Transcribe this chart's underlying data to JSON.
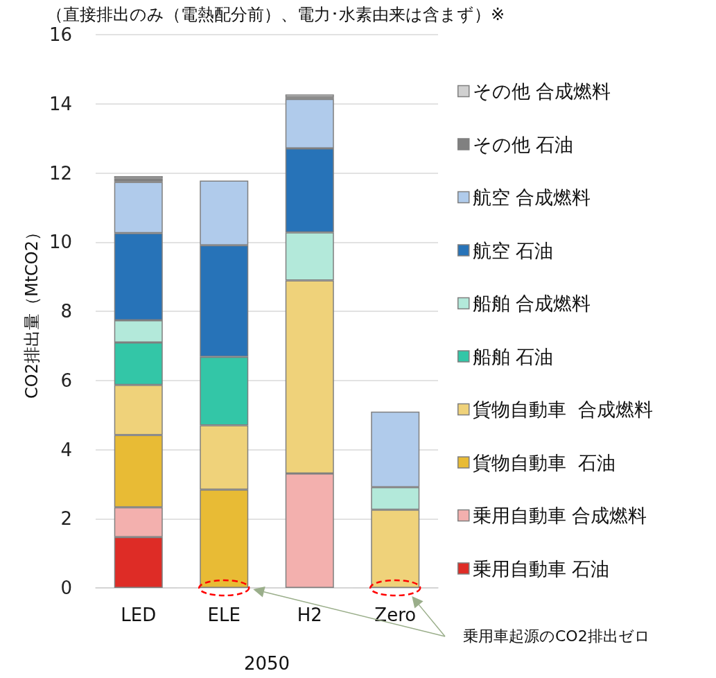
{
  "chart_data": {
    "type": "bar",
    "stacked": true,
    "title": "（直接排出のみ（電熱配分前）、電力･水素由来は含まず）※",
    "ylabel": "CO2排出量（MtCO2）",
    "xlabel": "2050",
    "categories": [
      "LED",
      "ELE",
      "H2",
      "Zero"
    ],
    "series": [
      {
        "name": "乗用自動車 石油",
        "color": "#de2c26",
        "values": [
          1.47,
          0,
          0,
          0
        ]
      },
      {
        "name": "乗用自動車 合成燃料",
        "color": "#f3b0ae",
        "values": [
          0.86,
          0,
          3.31,
          0
        ]
      },
      {
        "name": "貨物自動車  石油",
        "color": "#e8bb35",
        "values": [
          2.09,
          2.84,
          0,
          0
        ]
      },
      {
        "name": "貨物自動車  合成燃料",
        "color": "#efd27a",
        "values": [
          1.45,
          1.86,
          5.58,
          2.26
        ]
      },
      {
        "name": "船舶 石油",
        "color": "#33c6a7",
        "values": [
          1.23,
          1.98,
          0,
          0
        ]
      },
      {
        "name": "船舶 合成燃料",
        "color": "#b3e9da",
        "values": [
          0.64,
          0,
          1.39,
          0.65
        ]
      },
      {
        "name": "航空 石油",
        "color": "#2773b8",
        "values": [
          2.52,
          3.23,
          2.43,
          0
        ]
      },
      {
        "name": "航空 合成燃料",
        "color": "#b0cbeb",
        "values": [
          1.48,
          1.87,
          1.43,
          2.19
        ]
      },
      {
        "name": "その他 石油",
        "color": "#808080",
        "values": [
          0.1,
          0,
          0.05,
          0
        ]
      },
      {
        "name": "その他 合成燃料",
        "color": "#d0d0d0",
        "values": [
          0.07,
          0,
          0.08,
          0
        ]
      }
    ],
    "ylim": [
      0,
      16
    ],
    "yticks": [
      0,
      2,
      4,
      6,
      8,
      10,
      12,
      14,
      16
    ],
    "grid": "y",
    "legend": "right",
    "annotations": [
      "乗用車起源のCO2排出ゼロ"
    ]
  }
}
